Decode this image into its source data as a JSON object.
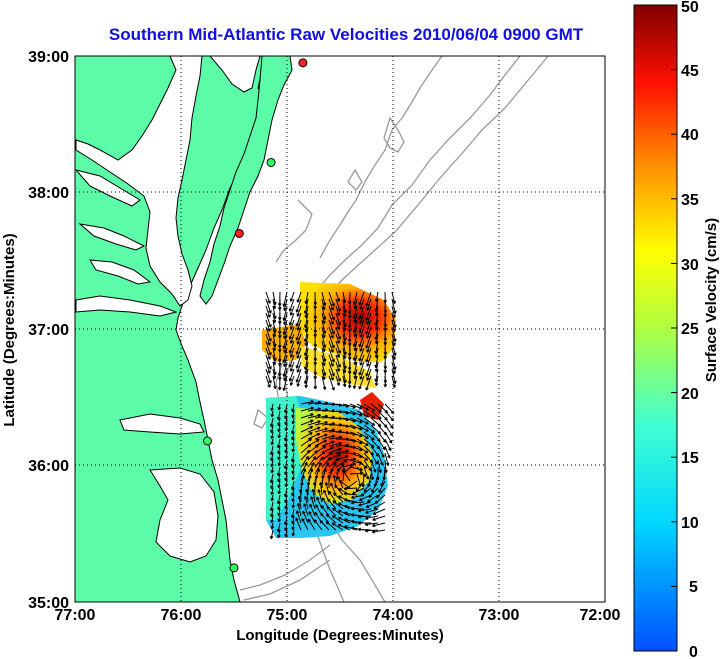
{
  "title": "Southern Mid-Atlantic Raw Velocities 2010/06/04 0900 GMT",
  "x_axis": {
    "label": "Longitude (Degrees:Minutes)",
    "ticks": [
      "77:00",
      "76:00",
      "75:00",
      "74:00",
      "73:00",
      "72:00"
    ]
  },
  "y_axis": {
    "label": "Latitude (Degrees:Minutes)",
    "ticks": [
      "39:00",
      "38:00",
      "37:00",
      "36:00",
      "35:00"
    ]
  },
  "colorbar": {
    "label": "Surface Velocity (cm/s)",
    "min": 0,
    "max": 50,
    "ticks": [
      "50",
      "45",
      "40",
      "35",
      "30",
      "25",
      "20",
      "15",
      "10",
      "5",
      "0"
    ]
  },
  "map": {
    "land_color": "#5cfba8",
    "water_color": "#ffffff",
    "coast_color": "#000000",
    "bathymetry_color": "#999999",
    "grid_style": "dotted",
    "extent": {
      "lon_west": -77,
      "lon_east": -72,
      "lat_south": 35,
      "lat_north": 39
    }
  },
  "stations": [
    {
      "lon": -74.85,
      "lat": 38.95,
      "status": "red"
    },
    {
      "lon": -75.15,
      "lat": 38.22,
      "status": "green"
    },
    {
      "lon": -75.45,
      "lat": 37.7,
      "status": "red"
    },
    {
      "lon": -75.75,
      "lat": 36.18,
      "status": "green"
    },
    {
      "lon": -75.5,
      "lat": 35.25,
      "status": "green"
    }
  ]
}
